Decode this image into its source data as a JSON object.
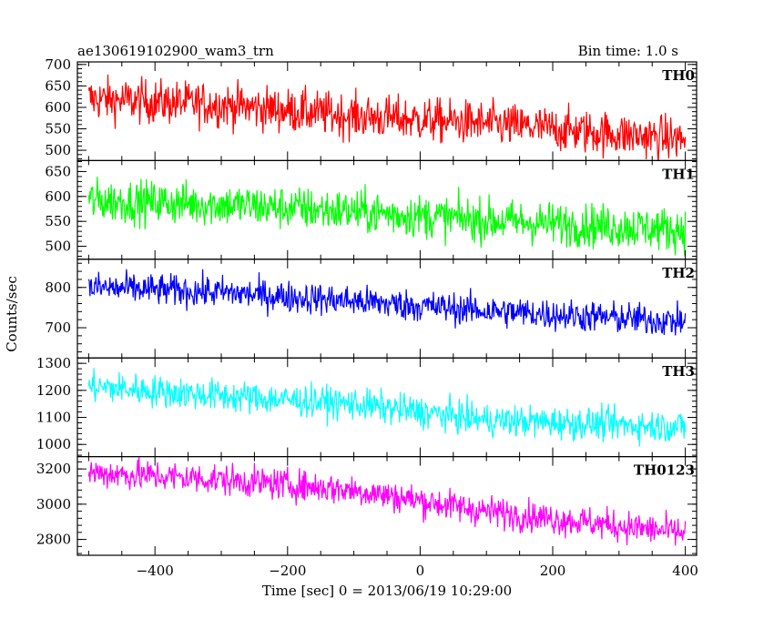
{
  "header": {
    "title": "ae130619102900_wam3_trn",
    "bin_time": "Bin time: 1.0 s"
  },
  "chart_data": {
    "type": "line",
    "title": "ae130619102900_wam3_trn",
    "subtitle": "Bin time: 1.0 s",
    "xlabel": "Time [sec] 0 = 2013/06/19 10:29:00",
    "ylabel": "Counts/sec",
    "xlim": [
      -517,
      417
    ],
    "x_ticks": [
      -400,
      -200,
      0,
      200,
      400
    ],
    "x_range": [
      -500,
      400
    ],
    "grid": false,
    "panels": [
      {
        "name": "TH0",
        "color": "#ff0000",
        "ylim": [
          476,
          706
        ],
        "y_ticks": [
          500,
          550,
          600,
          650,
          700
        ],
        "trend": [
          [
            -500,
            620
          ],
          [
            -300,
            606
          ],
          [
            -100,
            580
          ],
          [
            100,
            562
          ],
          [
            400,
            525
          ]
        ],
        "noise": 26
      },
      {
        "name": "TH1",
        "color": "#00ff00",
        "ylim": [
          474,
          672
        ],
        "y_ticks": [
          500,
          550,
          600,
          650
        ],
        "trend": [
          [
            -500,
            592
          ],
          [
            -300,
            584
          ],
          [
            -100,
            570
          ],
          [
            100,
            552
          ],
          [
            400,
            533
          ]
        ],
        "noise": 22
      },
      {
        "name": "TH2",
        "color": "#0000ff",
        "ylim": [
          625,
          870
        ],
        "y_ticks": [
          700,
          800
        ],
        "trend": [
          [
            -500,
            800
          ],
          [
            -300,
            788
          ],
          [
            -100,
            766
          ],
          [
            100,
            742
          ],
          [
            400,
            715
          ]
        ],
        "noise": 20
      },
      {
        "name": "TH3",
        "color": "#00ffff",
        "ylim": [
          955,
          1320
        ],
        "y_ticks": [
          1000,
          1100,
          1200,
          1300
        ],
        "trend": [
          [
            -500,
            1215
          ],
          [
            -300,
            1180
          ],
          [
            -100,
            1150
          ],
          [
            100,
            1090
          ],
          [
            400,
            1065
          ]
        ],
        "noise": 30
      },
      {
        "name": "TH0123",
        "color": "#ff00ff",
        "ylim": [
          2710,
          3270
        ],
        "y_ticks": [
          2800,
          3000,
          3200
        ],
        "trend": [
          [
            -500,
            3180
          ],
          [
            -300,
            3140
          ],
          [
            -100,
            3080
          ],
          [
            100,
            2960
          ],
          [
            400,
            2835
          ]
        ],
        "noise": 45
      }
    ]
  }
}
